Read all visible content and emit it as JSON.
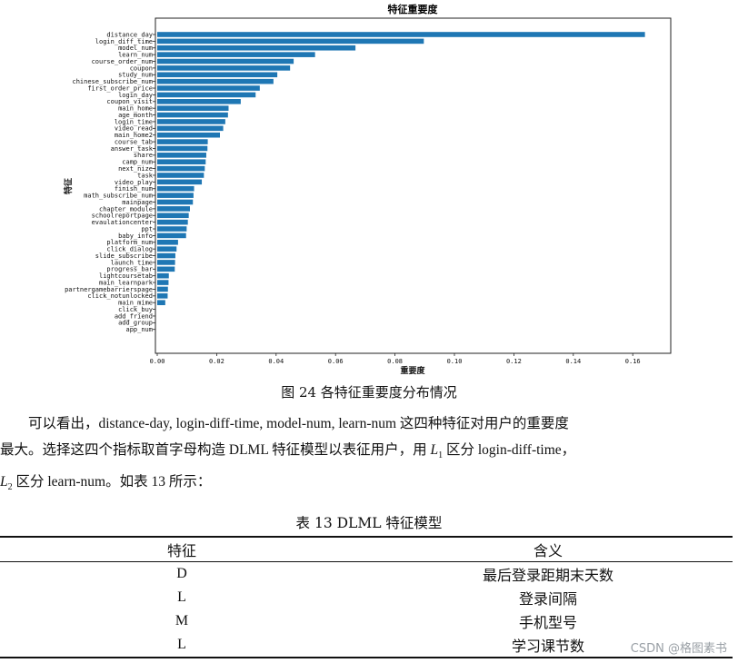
{
  "chart_data": {
    "type": "bar",
    "orientation": "horizontal",
    "title": "特征重要度",
    "xlabel": "重要度",
    "ylabel": "特征",
    "xlim": [
      0,
      0.17
    ],
    "xticks": [
      "0.00",
      "0.02",
      "0.04",
      "0.06",
      "0.08",
      "0.10",
      "0.12",
      "0.14",
      "0.16"
    ],
    "bar_color": "#1f77b4",
    "categories": [
      "distance_day",
      "login_diff_time",
      "model_num",
      "learn_num",
      "course_order_num",
      "coupon",
      "study_num",
      "chinese_subscribe_num",
      "first_order_price",
      "login_day",
      "coupon_visit",
      "main_home",
      "age_month",
      "login_time",
      "video_read",
      "main_home2",
      "course_tab",
      "answer_task",
      "share",
      "camp_num",
      "next_nize",
      "task",
      "video_play",
      "finish_num",
      "math_subscribe_num",
      "mainpage",
      "chapter_module",
      "schoolreportpage",
      "evaulationcenter",
      "ppt",
      "baby_info",
      "platform_num",
      "click_dialog",
      "slide_subscribe",
      "launch_time",
      "progress_bar",
      "lightcoursetab",
      "main_learnpark",
      "partnergamebarrierspage",
      "click_notunlocked",
      "main_mime",
      "click_buy",
      "add_friend",
      "add_group",
      "app_num"
    ],
    "values": [
      0.1641,
      0.0897,
      0.0667,
      0.0531,
      0.0459,
      0.0447,
      0.0404,
      0.0391,
      0.0345,
      0.0331,
      0.0281,
      0.024,
      0.0238,
      0.0229,
      0.0222,
      0.0211,
      0.017,
      0.0169,
      0.0165,
      0.0163,
      0.016,
      0.0157,
      0.015,
      0.0124,
      0.0122,
      0.012,
      0.011,
      0.0106,
      0.0103,
      0.0099,
      0.0097,
      0.007,
      0.0065,
      0.0061,
      0.006,
      0.0059,
      0.0039,
      0.0038,
      0.0036,
      0.0035,
      0.0027,
      0.0,
      0.0,
      0.0,
      0.0
    ]
  },
  "figure_caption": "图 24  各特征重要度分布情况",
  "paragraph": {
    "line1": "可以看出，distance-day, login-diff-time, model-num, learn-num 这四种特征对用户的重要度",
    "line2_a": "最大。选择这四个指标取首字母构造 DLML 特征模型以表征用户，用 ",
    "L": "L",
    "sub1": "1",
    "line2_b": " 区分 login-diff-time，",
    "sub2": "2",
    "line3_b": " 区分 learn-num。如表 13 所示："
  },
  "table": {
    "title": "表 13  DLML 特征模型",
    "headers": [
      "特征",
      "含义"
    ],
    "rows": [
      [
        "D",
        "最后登录距期末天数"
      ],
      [
        "L",
        "登录间隔"
      ],
      [
        "M",
        "手机型号"
      ],
      [
        "L",
        "学习课节数"
      ]
    ]
  },
  "watermark": "CSDN @格图素书"
}
